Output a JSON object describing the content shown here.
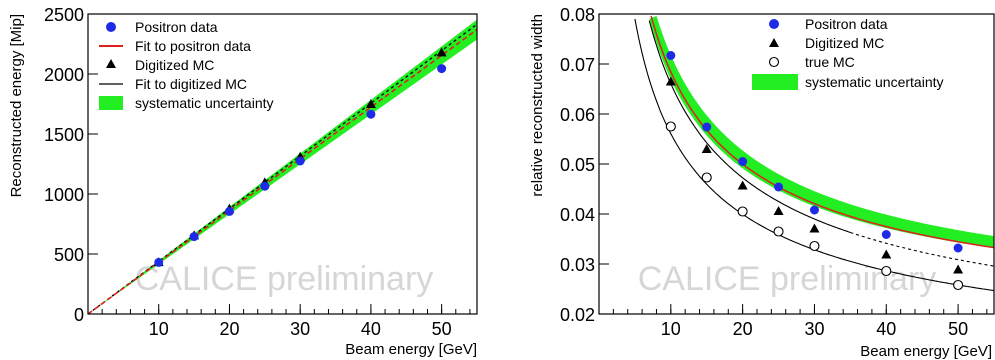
{
  "colors": {
    "positron": "#1e2be6",
    "fit_positron": "#e0201c",
    "systematic": "#22ee22",
    "mc": "#000000",
    "watermark": "#d6d6d6"
  },
  "chart_data": [
    {
      "type": "scatter",
      "xlabel": "Beam energy [GeV]",
      "ylabel": "Reconstructed energy [Mip]",
      "xlim": [
        0,
        55
      ],
      "ylim": [
        0,
        2500
      ],
      "xticks": [
        10,
        20,
        30,
        40,
        50
      ],
      "yticks": [
        0,
        500,
        1000,
        1500,
        2000,
        2500
      ],
      "watermark": "CALICE preliminary",
      "legend_position": "top-left",
      "legend": [
        {
          "label": "Positron data",
          "marker": "circle-filled"
        },
        {
          "label": "Fit to positron data",
          "marker": "line-red"
        },
        {
          "label": "Digitized MC",
          "marker": "triangle"
        },
        {
          "label": "Fit to digitized MC",
          "marker": "line-black"
        },
        {
          "label": "systematic uncertainty",
          "marker": "band-green"
        }
      ],
      "series": [
        {
          "name": "Positron data",
          "x": [
            10,
            15,
            20,
            25,
            30,
            40,
            50
          ],
          "y": [
            430,
            645,
            855,
            1065,
            1275,
            1665,
            2045
          ]
        },
        {
          "name": "Digitized MC",
          "x": [
            10,
            15,
            20,
            25,
            30,
            40,
            50
          ],
          "y": [
            432,
            655,
            878,
            1097,
            1310,
            1750,
            2180
          ]
        },
        {
          "name": "Fit to positron data",
          "fit": {
            "slope": 43.1,
            "intercept": 0
          }
        },
        {
          "name": "Fit to digitized MC",
          "fit": {
            "slope": 43.9,
            "intercept": 0
          }
        },
        {
          "name": "systematic uncertainty",
          "band": {
            "center_slope": 43.1,
            "half_width_slope": 1.5
          }
        }
      ]
    },
    {
      "type": "scatter",
      "xlabel": "Beam energy [GeV]",
      "ylabel": "relative reconstructed width",
      "xlim": [
        0,
        55
      ],
      "ylim": [
        0.02,
        0.08
      ],
      "xticks": [
        10,
        20,
        30,
        40,
        50
      ],
      "yticks": [
        0.02,
        0.03,
        0.04,
        0.05,
        0.06,
        0.07,
        0.08
      ],
      "ytick_labels": [
        "0.02",
        "0.03",
        "0.04",
        "0.05",
        "0.06",
        "0.07",
        "0.08"
      ],
      "watermark": "CALICE preliminary",
      "legend_position": "top-right",
      "legend": [
        {
          "label": "Positron data",
          "marker": "circle-filled"
        },
        {
          "label": "Digitized MC",
          "marker": "triangle"
        },
        {
          "label": "true MC",
          "marker": "circle-open"
        },
        {
          "label": "systematic uncertainty",
          "marker": "band-green"
        }
      ],
      "series": [
        {
          "name": "Positron data",
          "x": [
            10,
            15,
            20,
            25,
            30,
            40,
            50
          ],
          "y": [
            0.0717,
            0.0574,
            0.0505,
            0.0454,
            0.0408,
            0.0359,
            0.0332
          ]
        },
        {
          "name": "Digitized MC",
          "x": [
            10,
            15,
            20,
            25,
            30,
            40,
            50
          ],
          "y": [
            0.0665,
            0.053,
            0.0457,
            0.0406,
            0.0371,
            0.0319,
            0.0289
          ]
        },
        {
          "name": "true MC",
          "x": [
            10,
            15,
            20,
            25,
            30,
            40,
            50
          ],
          "y": [
            0.0575,
            0.0473,
            0.0405,
            0.0365,
            0.0336,
            0.0286,
            0.0258
          ]
        },
        {
          "name": "Fit to positron data",
          "fit": {
            "stochastic": 0.209,
            "constant": 0.0177
          }
        },
        {
          "name": "Fit to digitized MC",
          "fit": {
            "stochastic": 0.2065,
            "constant": 0.01
          }
        },
        {
          "name": "Fit to true MC",
          "fit": {
            "stochastic": 0.176,
            "constant": 0.0068
          }
        },
        {
          "name": "systematic uncertainty",
          "band": {
            "stochastic": 0.2105,
            "constant": 0.0194,
            "half_width_rel": 0.035
          }
        }
      ]
    }
  ]
}
